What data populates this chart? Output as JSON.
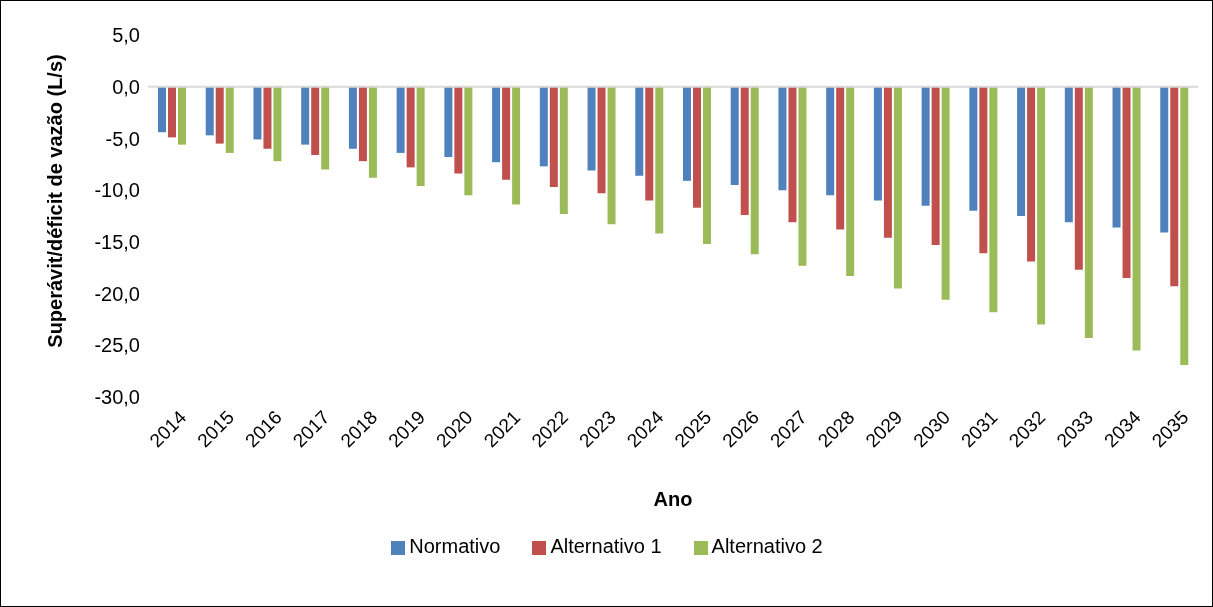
{
  "chart_data": {
    "type": "bar",
    "xlabel": "Ano",
    "ylabel": "Superávit/déficit de vazão (L/s)",
    "categories": [
      "2014",
      "2015",
      "2016",
      "2017",
      "2018",
      "2019",
      "2020",
      "2021",
      "2022",
      "2023",
      "2024",
      "2025",
      "2026",
      "2027",
      "2028",
      "2029",
      "2030",
      "2031",
      "2032",
      "2033",
      "2034",
      "2035"
    ],
    "series": [
      {
        "name": "Normativo",
        "color": "#4f81bd",
        "values": [
          -4.4,
          -4.7,
          -5.1,
          -5.6,
          -6.0,
          -6.4,
          -6.8,
          -7.3,
          -7.7,
          -8.1,
          -8.6,
          -9.1,
          -9.5,
          -10.0,
          -10.5,
          -11.0,
          -11.5,
          -12.0,
          -12.5,
          -13.1,
          -13.6,
          -14.1
        ]
      },
      {
        "name": "Alternativo 1",
        "color": "#c0504d",
        "values": [
          -4.9,
          -5.5,
          -6.0,
          -6.6,
          -7.2,
          -7.8,
          -8.4,
          -9.0,
          -9.7,
          -10.3,
          -11.0,
          -11.7,
          -12.4,
          -13.1,
          -13.8,
          -14.6,
          -15.3,
          -16.1,
          -16.9,
          -17.7,
          -18.5,
          -19.3
        ]
      },
      {
        "name": "Alternativo 2",
        "color": "#9bbb59",
        "values": [
          -5.6,
          -6.4,
          -7.2,
          -8.0,
          -8.8,
          -9.6,
          -10.5,
          -11.4,
          -12.3,
          -13.3,
          -14.2,
          -15.2,
          -16.2,
          -17.3,
          -18.3,
          -19.5,
          -20.6,
          -21.8,
          -23.0,
          -24.3,
          -25.5,
          -26.9
        ]
      }
    ],
    "ylim": [
      -30,
      5
    ],
    "yticks": [
      {
        "value": 5,
        "label": "5,0"
      },
      {
        "value": 0,
        "label": "0,0"
      },
      {
        "value": -5,
        "label": "-5,0"
      },
      {
        "value": -10,
        "label": "-10,0"
      },
      {
        "value": -15,
        "label": "-15,0"
      },
      {
        "value": -20,
        "label": "-20,0"
      },
      {
        "value": -25,
        "label": "-25,0"
      },
      {
        "value": -30,
        "label": "-30,0"
      }
    ],
    "grid": false,
    "legend": "bottom",
    "ref_lines": [
      {
        "axis": "y",
        "value": 0,
        "color": "#d9d9d9"
      }
    ]
  }
}
